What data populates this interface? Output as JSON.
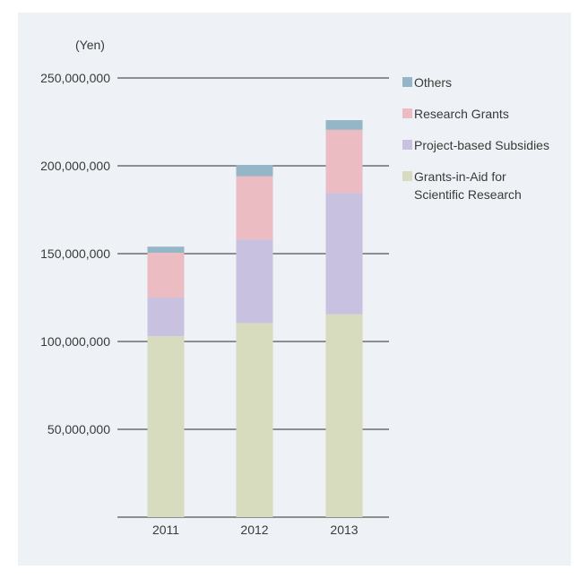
{
  "chart_data": {
    "type": "bar",
    "stacked": true,
    "unit_label": "(Yen)",
    "categories": [
      "2011",
      "2012",
      "2013"
    ],
    "series": [
      {
        "name": "Grants-in-Aid for Scientific Research",
        "color": "#d6dcbd",
        "values": [
          103000000,
          110500000,
          115500000
        ]
      },
      {
        "name": "Project-based Subsidies",
        "color": "#c8c1e0",
        "values": [
          22000000,
          47500000,
          69000000
        ]
      },
      {
        "name": "Research Grants",
        "color": "#ecbcc3",
        "values": [
          25500000,
          36000000,
          36000000
        ]
      },
      {
        "name": "Others",
        "color": "#94b6c7",
        "values": [
          3500000,
          6500000,
          5500000
        ]
      }
    ],
    "y_ticks": [
      50000000,
      100000000,
      150000000,
      200000000,
      250000000
    ],
    "y_tick_labels": [
      "50,000,000",
      "100,000,000",
      "150,000,000",
      "200,000,000",
      "250,000,000"
    ],
    "ylim": [
      0,
      250000000
    ],
    "grid": true,
    "legend_position": "right"
  }
}
